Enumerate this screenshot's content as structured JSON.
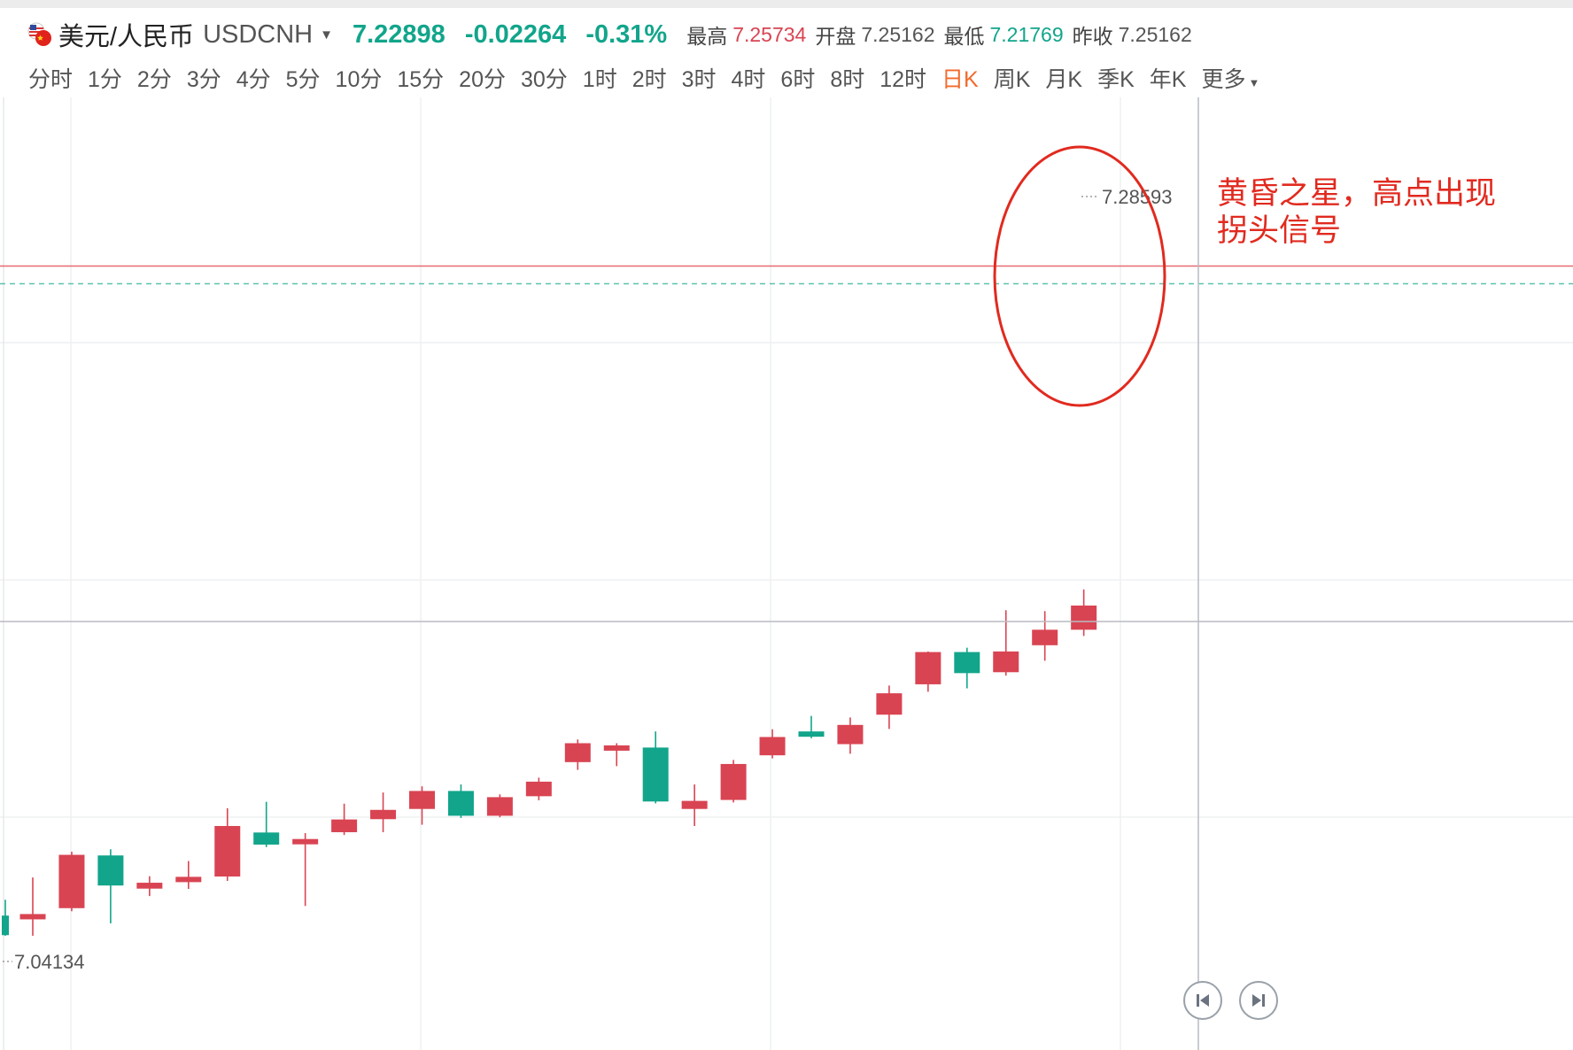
{
  "header": {
    "pair_name": "美元/人民币",
    "pair_code": "USDCNH",
    "price": "7.22898",
    "change": "-0.02264",
    "change_pct": "-0.31%",
    "stats": [
      {
        "label": "最高",
        "value": "7.25734",
        "dir": "up"
      },
      {
        "label": "开盘",
        "value": "7.25162",
        "dir": "flat"
      },
      {
        "label": "最低",
        "value": "7.21769",
        "dir": "down"
      },
      {
        "label": "昨收",
        "value": "7.25162",
        "dir": "flat"
      }
    ]
  },
  "periods": [
    {
      "label": "分时",
      "active": false
    },
    {
      "label": "1分",
      "active": false
    },
    {
      "label": "2分",
      "active": false
    },
    {
      "label": "3分",
      "active": false
    },
    {
      "label": "4分",
      "active": false
    },
    {
      "label": "5分",
      "active": false
    },
    {
      "label": "10分",
      "active": false
    },
    {
      "label": "15分",
      "active": false
    },
    {
      "label": "20分",
      "active": false
    },
    {
      "label": "30分",
      "active": false
    },
    {
      "label": "1时",
      "active": false
    },
    {
      "label": "2时",
      "active": false
    },
    {
      "label": "3时",
      "active": false
    },
    {
      "label": "4时",
      "active": false
    },
    {
      "label": "6时",
      "active": false
    },
    {
      "label": "8时",
      "active": false
    },
    {
      "label": "12时",
      "active": false
    },
    {
      "label": "日K",
      "active": true
    },
    {
      "label": "周K",
      "active": false
    },
    {
      "label": "月K",
      "active": false
    },
    {
      "label": "季K",
      "active": false
    },
    {
      "label": "年K",
      "active": false
    },
    {
      "label": "更多",
      "active": false,
      "has_caret": true
    }
  ],
  "colors": {
    "up": "#d94452",
    "down": "#12a58b",
    "accent": "#f46a2b",
    "annotation": "#e12a1f"
  },
  "annotation": {
    "line1": "黄昏之星，高点出现",
    "line2": "拐头信号"
  },
  "controls": {
    "first_icon": "skip-back-icon",
    "next_icon": "step-forward-icon"
  },
  "chart_data": {
    "type": "candlestick",
    "price_max_label": "7.28593",
    "price_min_label": "7.04134",
    "ylim": [
      7.041,
      7.286
    ],
    "ref_lines": {
      "high": 7.2573,
      "prev_close": 7.2516
    },
    "candles": [
      {
        "open": 7.0478,
        "close": 7.0415,
        "high": 7.0529,
        "low": 7.0413
      },
      {
        "open": 7.0478,
        "close": 7.0483,
        "high": 7.0601,
        "low": 7.0413
      },
      {
        "open": 7.0502,
        "close": 7.0674,
        "high": 7.0684,
        "low": 7.0492
      },
      {
        "open": 7.0672,
        "close": 7.0575,
        "high": 7.0692,
        "low": 7.0453
      },
      {
        "open": 7.0565,
        "close": 7.0584,
        "high": 7.0605,
        "low": 7.0541
      },
      {
        "open": 7.059,
        "close": 7.0603,
        "high": 7.0654,
        "low": 7.0564
      },
      {
        "open": 7.0604,
        "close": 7.0767,
        "high": 7.0824,
        "low": 7.059
      },
      {
        "open": 7.0746,
        "close": 7.0707,
        "high": 7.0845,
        "low": 7.0699
      },
      {
        "open": 7.0709,
        "close": 7.0725,
        "high": 7.0744,
        "low": 7.0509
      },
      {
        "open": 7.0747,
        "close": 7.0788,
        "high": 7.0839,
        "low": 7.0738
      },
      {
        "open": 7.0789,
        "close": 7.0819,
        "high": 7.0875,
        "low": 7.0747
      },
      {
        "open": 7.0822,
        "close": 7.088,
        "high": 7.0895,
        "low": 7.0771
      },
      {
        "open": 7.088,
        "close": 7.08,
        "high": 7.0901,
        "low": 7.0793
      },
      {
        "open": 7.08,
        "close": 7.086,
        "high": 7.0869,
        "low": 7.0795
      },
      {
        "open": 7.0863,
        "close": 7.091,
        "high": 7.0923,
        "low": 7.085
      },
      {
        "open": 7.0973,
        "close": 7.1034,
        "high": 7.1046,
        "low": 7.0948
      },
      {
        "open": 7.1018,
        "close": 7.1027,
        "high": 7.1034,
        "low": 7.096
      },
      {
        "open": 7.102,
        "close": 7.0846,
        "high": 7.1072,
        "low": 7.084
      },
      {
        "open": 7.0822,
        "close": 7.0848,
        "high": 7.0901,
        "low": 7.0767
      },
      {
        "open": 7.0851,
        "close": 7.0967,
        "high": 7.098,
        "low": 7.0843
      },
      {
        "open": 7.0995,
        "close": 7.1054,
        "high": 7.1079,
        "low": 7.0985
      },
      {
        "open": 7.1072,
        "close": 7.1056,
        "high": 7.1122,
        "low": 7.105
      },
      {
        "open": 7.1031,
        "close": 7.1093,
        "high": 7.1117,
        "low": 7.1
      },
      {
        "open": 7.1126,
        "close": 7.1195,
        "high": 7.122,
        "low": 7.108
      },
      {
        "open": 7.1224,
        "close": 7.1328,
        "high": 7.133,
        "low": 7.12
      },
      {
        "open": 7.1328,
        "close": 7.126,
        "high": 7.1342,
        "low": 7.1211
      },
      {
        "open": 7.1263,
        "close": 7.133,
        "high": 7.1463,
        "low": 7.1252
      },
      {
        "open": 7.135,
        "close": 7.14,
        "high": 7.146,
        "low": 7.13
      },
      {
        "open": 7.14,
        "close": 7.1478,
        "high": 7.153,
        "low": 7.138
      }
    ]
  }
}
